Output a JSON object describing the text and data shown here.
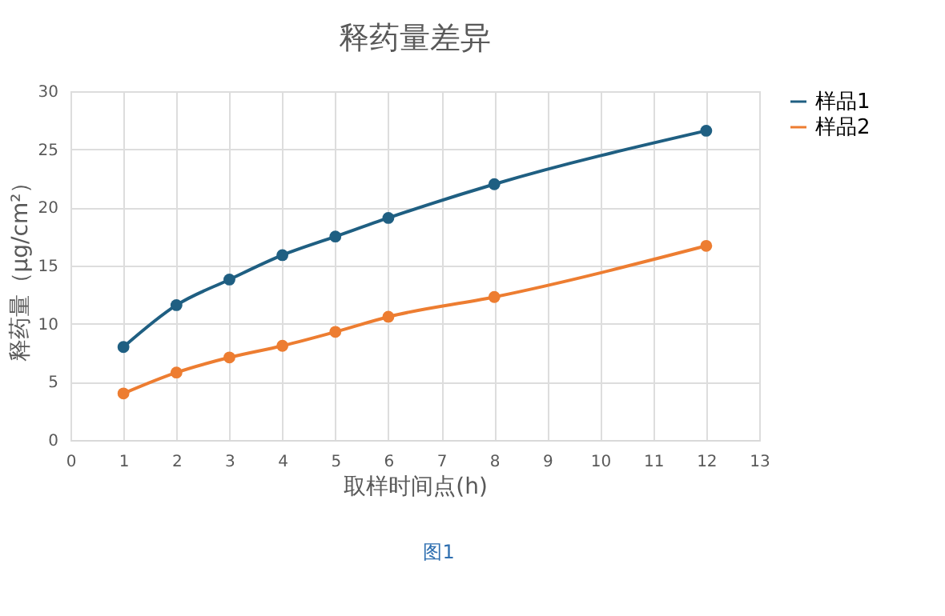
{
  "chart_data": {
    "type": "line",
    "title": "释药量差异",
    "xlabel": "取样时间点(h)",
    "ylabel": "释药量（μg/cm²）",
    "x": [
      1,
      2,
      3,
      4,
      5,
      6,
      8,
      12
    ],
    "series": [
      {
        "name": "样品1",
        "color": "#1f5f82",
        "values": [
          8.0,
          11.6,
          13.8,
          15.9,
          17.5,
          19.1,
          22.0,
          26.6
        ]
      },
      {
        "name": "样品2",
        "color": "#ed7d31",
        "values": [
          4.0,
          5.8,
          7.1,
          8.1,
          9.3,
          10.6,
          12.3,
          16.7
        ]
      }
    ],
    "xlim": [
      0,
      13
    ],
    "xticks": [
      0,
      1,
      2,
      3,
      4,
      5,
      6,
      7,
      8,
      9,
      10,
      11,
      12,
      13
    ],
    "ylim": [
      0,
      30
    ],
    "yticks": [
      0,
      5,
      10,
      15,
      20,
      25,
      30
    ],
    "grid": true,
    "legend": "right",
    "marker": "circle",
    "line_style": "solid",
    "annotations": [
      "图1"
    ]
  }
}
